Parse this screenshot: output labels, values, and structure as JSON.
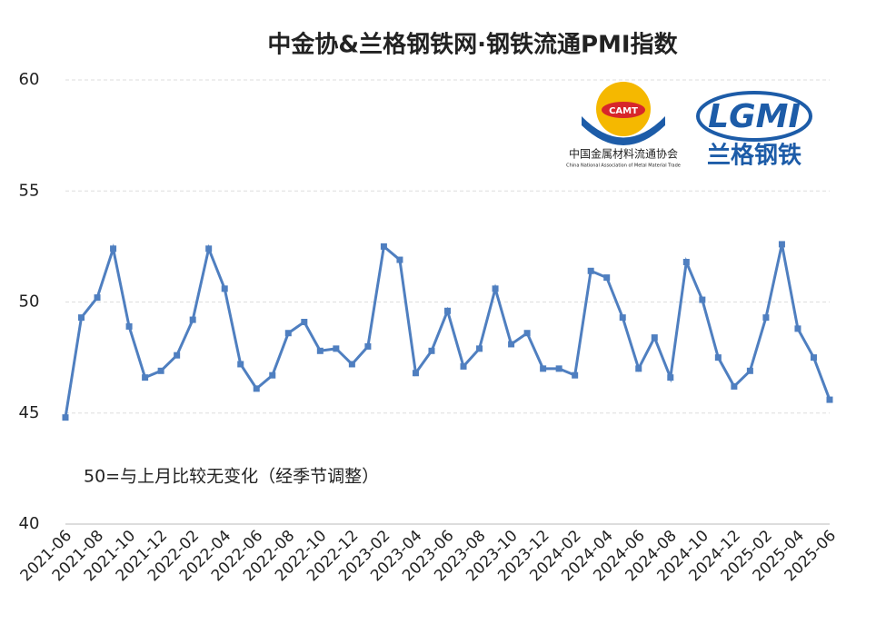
{
  "chart_data": {
    "type": "line",
    "title": "中金协&兰格钢铁网·钢铁流通PMI指数",
    "annotation": "50=与上月比较无变化（经季节调整）",
    "logos": {
      "camt": "CAMT",
      "camt_name": "中国金属材料流通协会",
      "camt_english": "China National Association of Metal Material Trade",
      "lgmi": "LGMI",
      "lgmi_name": "兰格钢铁"
    },
    "categories": [
      "2021-06",
      null,
      "2021-08",
      null,
      "2021-10",
      null,
      "2021-12",
      null,
      "2022-02",
      null,
      "2022-04",
      null,
      "2022-06",
      null,
      "2022-08",
      null,
      "2022-10",
      null,
      "2022-12",
      null,
      "2023-02",
      null,
      "2023-04",
      null,
      "2023-06",
      null,
      "2023-08",
      null,
      "2023-10",
      null,
      "2023-12",
      null,
      "2024-02",
      null,
      "2024-04",
      null,
      "2024-06",
      null,
      "2024-08",
      null,
      "2024-10",
      null,
      "2024-12",
      null,
      "2025-02",
      null,
      "2025-04",
      null,
      "2025-06"
    ],
    "series": [
      {
        "color": "#4f7fc0",
        "values": [
          44.8,
          49.3,
          50.2,
          52.4,
          48.9,
          46.6,
          46.9,
          47.6,
          49.2,
          52.4,
          50.6,
          47.2,
          46.1,
          46.7,
          48.6,
          49.1,
          47.8,
          47.9,
          47.2,
          48.0,
          52.5,
          51.9,
          46.8,
          47.8,
          49.6,
          47.1,
          47.9,
          50.6,
          48.1,
          48.6,
          47.0,
          47.0,
          46.7,
          51.4,
          51.1,
          49.3,
          47.0,
          48.4,
          46.6,
          51.8,
          50.1,
          47.5,
          46.2,
          46.9,
          49.3,
          52.6,
          48.8,
          47.5,
          45.6
        ]
      }
    ],
    "ylim": [
      40,
      60
    ],
    "yticks": [
      40,
      45,
      50,
      55,
      60
    ],
    "grid": true
  }
}
